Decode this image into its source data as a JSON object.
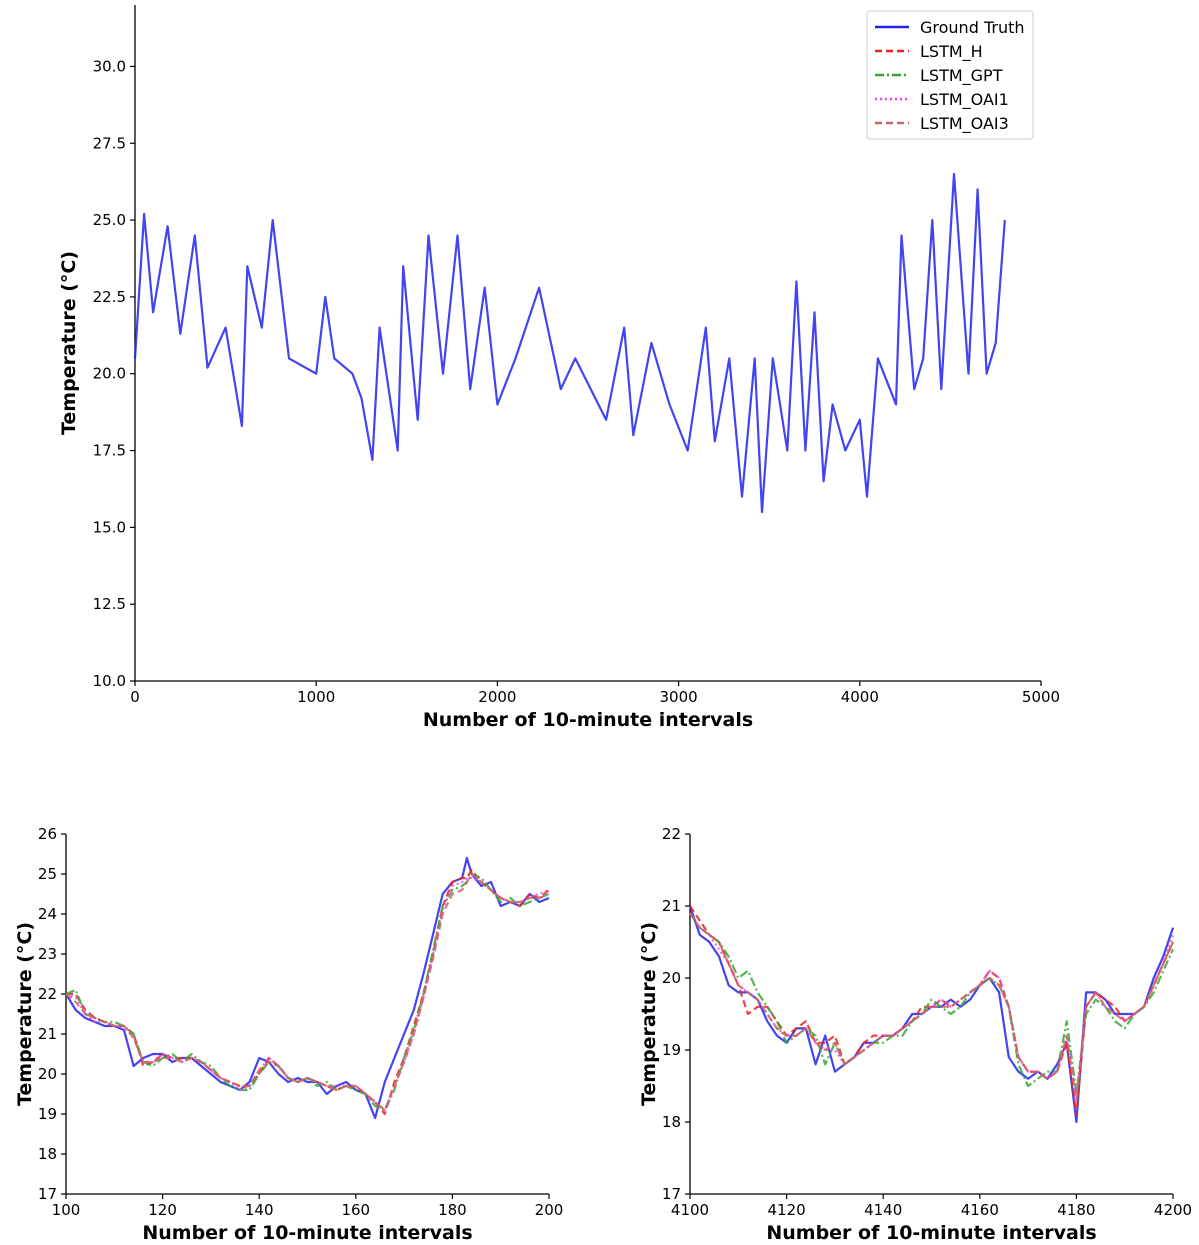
{
  "legend": [
    {
      "name": "Ground Truth",
      "color": "#2222ee",
      "dash": "solid"
    },
    {
      "name": "LSTM_H",
      "color": "#ee2222",
      "dash": "dashed"
    },
    {
      "name": "LSTM_GPT",
      "color": "#33aa33",
      "dash": "dashdot"
    },
    {
      "name": "LSTM_OAI1",
      "color": "#ee44ee",
      "dash": "dotted"
    },
    {
      "name": "LSTM_OAI3",
      "color": "#cc6666",
      "dash": "dashed"
    }
  ],
  "chart_data": [
    {
      "type": "line",
      "title": "",
      "xlabel": "Number of 10-minute intervals",
      "ylabel": "Temperature (°C)",
      "xlim": [
        0,
        5000
      ],
      "ylim": [
        10,
        32
      ],
      "xticks": [
        "0",
        "1000",
        "2000",
        "3000",
        "4000",
        "5000"
      ],
      "yticks": [
        "10.0",
        "12.5",
        "15.0",
        "17.5",
        "20.0",
        "22.5",
        "25.0",
        "27.5",
        "30.0"
      ],
      "legend_position": "top-right",
      "grid": false,
      "x": [
        0,
        50,
        100,
        180,
        250,
        330,
        400,
        500,
        590,
        620,
        700,
        760,
        850,
        1000,
        1050,
        1100,
        1200,
        1250,
        1310,
        1350,
        1450,
        1480,
        1560,
        1620,
        1700,
        1780,
        1850,
        1930,
        2000,
        2100,
        2230,
        2350,
        2430,
        2600,
        2700,
        2750,
        2850,
        2950,
        3050,
        3150,
        3200,
        3280,
        3350,
        3420,
        3460,
        3520,
        3600,
        3650,
        3700,
        3750,
        3800,
        3850,
        3920,
        4000,
        4040,
        4100,
        4200,
        4230,
        4300,
        4350,
        4400,
        4450,
        4520,
        4600,
        4650,
        4700,
        4750,
        4800
      ],
      "series": [
        {
          "name": "Ground Truth",
          "values": [
            20.5,
            25.2,
            22.0,
            24.8,
            21.3,
            24.5,
            20.2,
            21.5,
            18.3,
            23.5,
            21.5,
            25.0,
            20.5,
            20.0,
            22.5,
            20.5,
            20.0,
            19.2,
            17.2,
            21.5,
            17.5,
            23.5,
            18.5,
            24.5,
            20.0,
            24.5,
            19.5,
            22.8,
            19.0,
            20.5,
            22.8,
            19.5,
            20.5,
            18.5,
            21.5,
            18.0,
            21.0,
            19.0,
            17.5,
            21.5,
            17.8,
            20.5,
            16.0,
            20.5,
            15.5,
            20.5,
            17.5,
            23.0,
            17.5,
            22.0,
            16.5,
            19.0,
            17.5,
            18.5,
            16.0,
            20.5,
            19.0,
            24.5,
            19.5,
            20.5,
            25.0,
            19.5,
            26.5,
            20.0,
            26.0,
            20.0,
            21.0,
            25.0
          ]
        }
      ]
    },
    {
      "type": "line",
      "title": "",
      "xlabel": "Number of 10-minute intervals",
      "ylabel": "Temperature (°C)",
      "xlim": [
        100,
        200
      ],
      "ylim": [
        17,
        26
      ],
      "xticks": [
        "100",
        "120",
        "140",
        "160",
        "180",
        "200"
      ],
      "yticks": [
        "17",
        "18",
        "19",
        "20",
        "21",
        "22",
        "23",
        "24",
        "25",
        "26"
      ],
      "grid": false,
      "x": [
        100,
        102,
        104,
        106,
        108,
        110,
        112,
        114,
        116,
        118,
        120,
        122,
        124,
        126,
        128,
        130,
        132,
        134,
        136,
        138,
        140,
        142,
        144,
        146,
        148,
        150,
        152,
        154,
        156,
        158,
        160,
        162,
        164,
        166,
        168,
        170,
        172,
        174,
        176,
        178,
        180,
        182,
        183,
        184,
        186,
        188,
        190,
        192,
        194,
        196,
        198,
        200
      ],
      "series": [
        {
          "name": "Ground Truth",
          "values": [
            22.0,
            21.6,
            21.4,
            21.3,
            21.2,
            21.2,
            21.1,
            20.2,
            20.4,
            20.5,
            20.5,
            20.3,
            20.4,
            20.4,
            20.2,
            20.0,
            19.8,
            19.7,
            19.6,
            19.8,
            20.4,
            20.3,
            20.0,
            19.8,
            19.9,
            19.8,
            19.8,
            19.5,
            19.7,
            19.8,
            19.6,
            19.5,
            18.9,
            19.8,
            20.4,
            21.0,
            21.6,
            22.5,
            23.5,
            24.5,
            24.8,
            24.9,
            25.4,
            25.0,
            24.7,
            24.8,
            24.2,
            24.3,
            24.2,
            24.5,
            24.3,
            24.4
          ]
        },
        {
          "name": "LSTM_H",
          "values": [
            22.0,
            22.0,
            21.6,
            21.4,
            21.3,
            21.2,
            21.2,
            21.0,
            20.2,
            20.3,
            20.5,
            20.4,
            20.4,
            20.4,
            20.3,
            20.1,
            19.9,
            19.8,
            19.7,
            19.7,
            20.0,
            20.4,
            20.2,
            19.9,
            19.8,
            19.9,
            19.8,
            19.7,
            19.6,
            19.7,
            19.7,
            19.5,
            19.3,
            19.0,
            19.8,
            20.4,
            21.2,
            22.0,
            23.0,
            24.2,
            24.8,
            24.9,
            24.9,
            25.1,
            24.8,
            24.6,
            24.4,
            24.3,
            24.2,
            24.5,
            24.4,
            24.6
          ]
        },
        {
          "name": "LSTM_GPT",
          "values": [
            22.0,
            22.1,
            21.5,
            21.4,
            21.3,
            21.3,
            21.2,
            21.0,
            20.3,
            20.2,
            20.4,
            20.5,
            20.3,
            20.5,
            20.3,
            20.2,
            19.9,
            19.7,
            19.6,
            19.6,
            20.0,
            20.3,
            20.2,
            19.9,
            19.8,
            19.9,
            19.7,
            19.8,
            19.6,
            19.7,
            19.6,
            19.5,
            19.2,
            19.1,
            19.6,
            20.4,
            21.1,
            22.0,
            23.1,
            24.2,
            24.6,
            24.7,
            24.8,
            25.0,
            24.9,
            24.6,
            24.3,
            24.4,
            24.2,
            24.3,
            24.4,
            24.5
          ]
        },
        {
          "name": "LSTM_OAI1",
          "values": [
            22.0,
            21.9,
            21.5,
            21.3,
            21.3,
            21.2,
            21.2,
            20.9,
            20.3,
            20.3,
            20.5,
            20.4,
            20.3,
            20.4,
            20.3,
            20.1,
            19.9,
            19.8,
            19.6,
            19.7,
            20.1,
            20.4,
            20.2,
            19.9,
            19.8,
            19.9,
            19.8,
            19.7,
            19.7,
            19.7,
            19.7,
            19.5,
            19.3,
            19.1,
            19.7,
            20.3,
            21.0,
            21.9,
            23.0,
            24.1,
            24.7,
            24.8,
            24.9,
            24.9,
            24.8,
            24.6,
            24.4,
            24.3,
            24.3,
            24.4,
            24.5,
            24.6
          ]
        },
        {
          "name": "LSTM_OAI3",
          "values": [
            22.0,
            21.8,
            21.5,
            21.4,
            21.3,
            21.2,
            21.2,
            20.9,
            20.3,
            20.3,
            20.4,
            20.4,
            20.3,
            20.4,
            20.3,
            20.1,
            19.9,
            19.8,
            19.7,
            19.7,
            20.1,
            20.3,
            20.2,
            19.9,
            19.8,
            19.9,
            19.8,
            19.7,
            19.6,
            19.7,
            19.7,
            19.5,
            19.3,
            19.1,
            19.7,
            20.3,
            21.0,
            21.9,
            22.9,
            24.0,
            24.5,
            24.6,
            24.8,
            25.0,
            24.8,
            24.6,
            24.4,
            24.3,
            24.3,
            24.4,
            24.4,
            24.5
          ]
        }
      ]
    },
    {
      "type": "line",
      "title": "",
      "xlabel": "Number of 10-minute intervals",
      "ylabel": "Temperature (°C)",
      "xlim": [
        4100,
        4200
      ],
      "ylim": [
        17,
        22
      ],
      "xticks": [
        "4100",
        "4120",
        "4140",
        "4160",
        "4180",
        "4200"
      ],
      "yticks": [
        "17",
        "18",
        "19",
        "20",
        "21",
        "22"
      ],
      "grid": false,
      "x": [
        4100,
        4102,
        4104,
        4106,
        4108,
        4110,
        4112,
        4114,
        4116,
        4118,
        4120,
        4122,
        4124,
        4126,
        4128,
        4130,
        4132,
        4134,
        4136,
        4138,
        4140,
        4142,
        4144,
        4146,
        4148,
        4150,
        4152,
        4154,
        4156,
        4158,
        4160,
        4162,
        4164,
        4166,
        4168,
        4170,
        4172,
        4174,
        4176,
        4178,
        4180,
        4182,
        4184,
        4186,
        4188,
        4190,
        4192,
        4194,
        4196,
        4198,
        4200
      ],
      "series": [
        {
          "name": "Ground Truth",
          "values": [
            21.0,
            20.6,
            20.5,
            20.3,
            19.9,
            19.8,
            19.8,
            19.7,
            19.4,
            19.2,
            19.1,
            19.3,
            19.3,
            18.8,
            19.2,
            18.7,
            18.8,
            18.9,
            19.1,
            19.1,
            19.2,
            19.2,
            19.3,
            19.5,
            19.5,
            19.6,
            19.6,
            19.7,
            19.6,
            19.7,
            19.9,
            20.0,
            19.8,
            18.9,
            18.7,
            18.6,
            18.7,
            18.6,
            18.8,
            19.1,
            18.0,
            19.8,
            19.8,
            19.7,
            19.5,
            19.5,
            19.5,
            19.6,
            20.0,
            20.3,
            20.7
          ]
        },
        {
          "name": "LSTM_H",
          "values": [
            21.0,
            20.8,
            20.6,
            20.5,
            20.2,
            19.9,
            19.5,
            19.6,
            19.6,
            19.4,
            19.2,
            19.3,
            19.4,
            19.1,
            19.1,
            19.2,
            18.8,
            18.9,
            19.1,
            19.2,
            19.2,
            19.2,
            19.3,
            19.4,
            19.6,
            19.6,
            19.7,
            19.6,
            19.7,
            19.8,
            19.9,
            20.1,
            20.0,
            19.6,
            18.9,
            18.7,
            18.7,
            18.6,
            18.7,
            19.1,
            18.1,
            19.6,
            19.8,
            19.7,
            19.6,
            19.4,
            19.5,
            19.6,
            19.9,
            20.2,
            20.5
          ]
        },
        {
          "name": "LSTM_GPT",
          "values": [
            20.9,
            20.7,
            20.6,
            20.5,
            20.3,
            20.0,
            20.1,
            19.8,
            19.6,
            19.4,
            19.1,
            19.2,
            19.3,
            19.2,
            18.8,
            19.1,
            18.8,
            18.9,
            19.0,
            19.1,
            19.1,
            19.2,
            19.2,
            19.4,
            19.5,
            19.7,
            19.6,
            19.5,
            19.6,
            19.8,
            19.9,
            20.0,
            19.9,
            19.6,
            18.8,
            18.5,
            18.6,
            18.7,
            18.7,
            19.4,
            18.4,
            19.5,
            19.7,
            19.6,
            19.4,
            19.3,
            19.5,
            19.6,
            19.8,
            20.1,
            20.4
          ]
        },
        {
          "name": "LSTM_OAI1",
          "values": [
            20.9,
            20.7,
            20.6,
            20.4,
            20.2,
            19.9,
            19.8,
            19.7,
            19.5,
            19.3,
            19.2,
            19.2,
            19.3,
            19.1,
            19.0,
            19.0,
            18.8,
            18.9,
            19.0,
            19.1,
            19.2,
            19.2,
            19.3,
            19.4,
            19.5,
            19.6,
            19.7,
            19.6,
            19.7,
            19.8,
            19.9,
            20.1,
            20.0,
            19.6,
            18.9,
            18.7,
            18.7,
            18.6,
            18.7,
            19.2,
            18.3,
            19.6,
            19.8,
            19.6,
            19.5,
            19.4,
            19.5,
            19.6,
            19.9,
            20.2,
            20.6
          ]
        },
        {
          "name": "LSTM_OAI3",
          "values": [
            20.9,
            20.7,
            20.6,
            20.5,
            20.2,
            19.9,
            19.8,
            19.7,
            19.5,
            19.3,
            19.2,
            19.2,
            19.3,
            19.1,
            19.0,
            19.1,
            18.8,
            18.9,
            19.0,
            19.1,
            19.2,
            19.2,
            19.3,
            19.4,
            19.5,
            19.6,
            19.6,
            19.6,
            19.7,
            19.8,
            19.9,
            20.0,
            19.9,
            19.6,
            18.9,
            18.7,
            18.7,
            18.6,
            18.7,
            19.2,
            18.3,
            19.6,
            19.8,
            19.6,
            19.5,
            19.4,
            19.5,
            19.6,
            19.9,
            20.2,
            20.5
          ]
        }
      ]
    }
  ]
}
